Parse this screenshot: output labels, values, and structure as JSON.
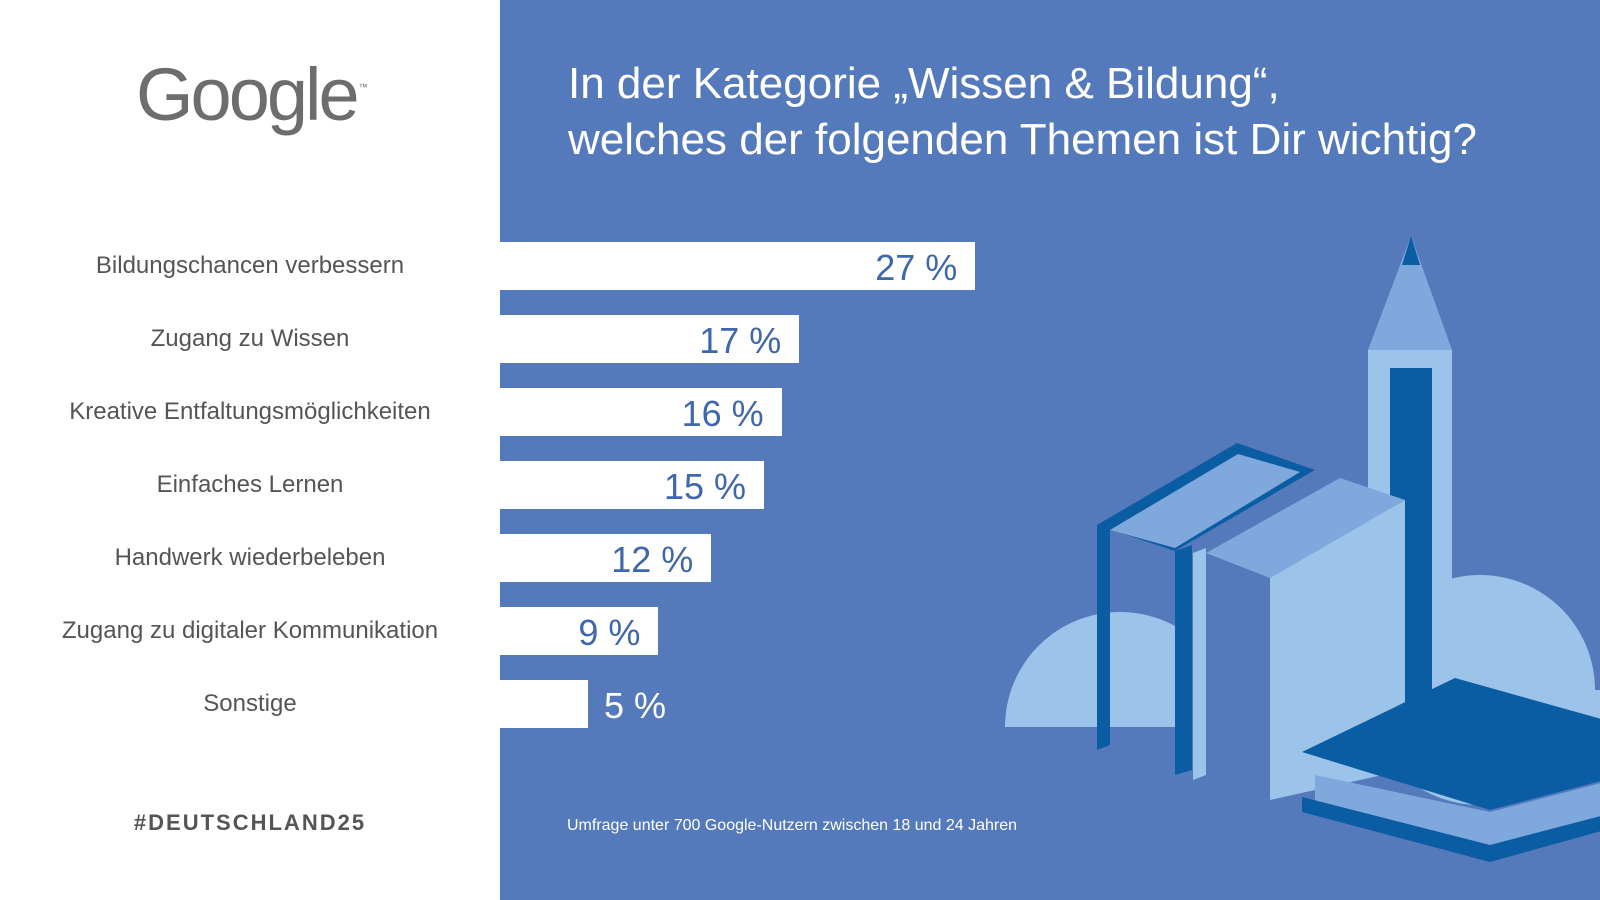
{
  "brand": {
    "logo_text": "Google",
    "logo_tm": "™",
    "hashtag": "#DEUTSCHLAND25"
  },
  "header": {
    "title_line1": "In der Kategorie „Wissen & Bildung“,",
    "title_line2": "welches der folgenden Themen ist Dir wichtig?"
  },
  "footnote": "Umfrage unter 700 Google-Nutzern zwischen 18 und 24 Jahren",
  "colors": {
    "panel": "#557ABC",
    "bar": "#FFFFFF",
    "value_text": "#3F67AE",
    "label_text": "#555555"
  },
  "illustration": {
    "icon": "books-and-pencil-icon"
  },
  "chart_data": {
    "type": "bar",
    "orientation": "horizontal",
    "categories": [
      "Bildungschancen verbessern",
      "Zugang zu Wissen",
      "Kreative Entfaltungsmöglichkeiten",
      "Einfaches Lernen",
      "Handwerk wiederbeleben",
      "Zugang zu digitaler Kommunikation",
      "Sonstige"
    ],
    "values": [
      27,
      17,
      16,
      15,
      12,
      9,
      5
    ],
    "value_labels": [
      "27 %",
      "17 %",
      "16 %",
      "15 %",
      "12 %",
      "9 %",
      "5 %"
    ],
    "unit": "%",
    "grid": false
  }
}
